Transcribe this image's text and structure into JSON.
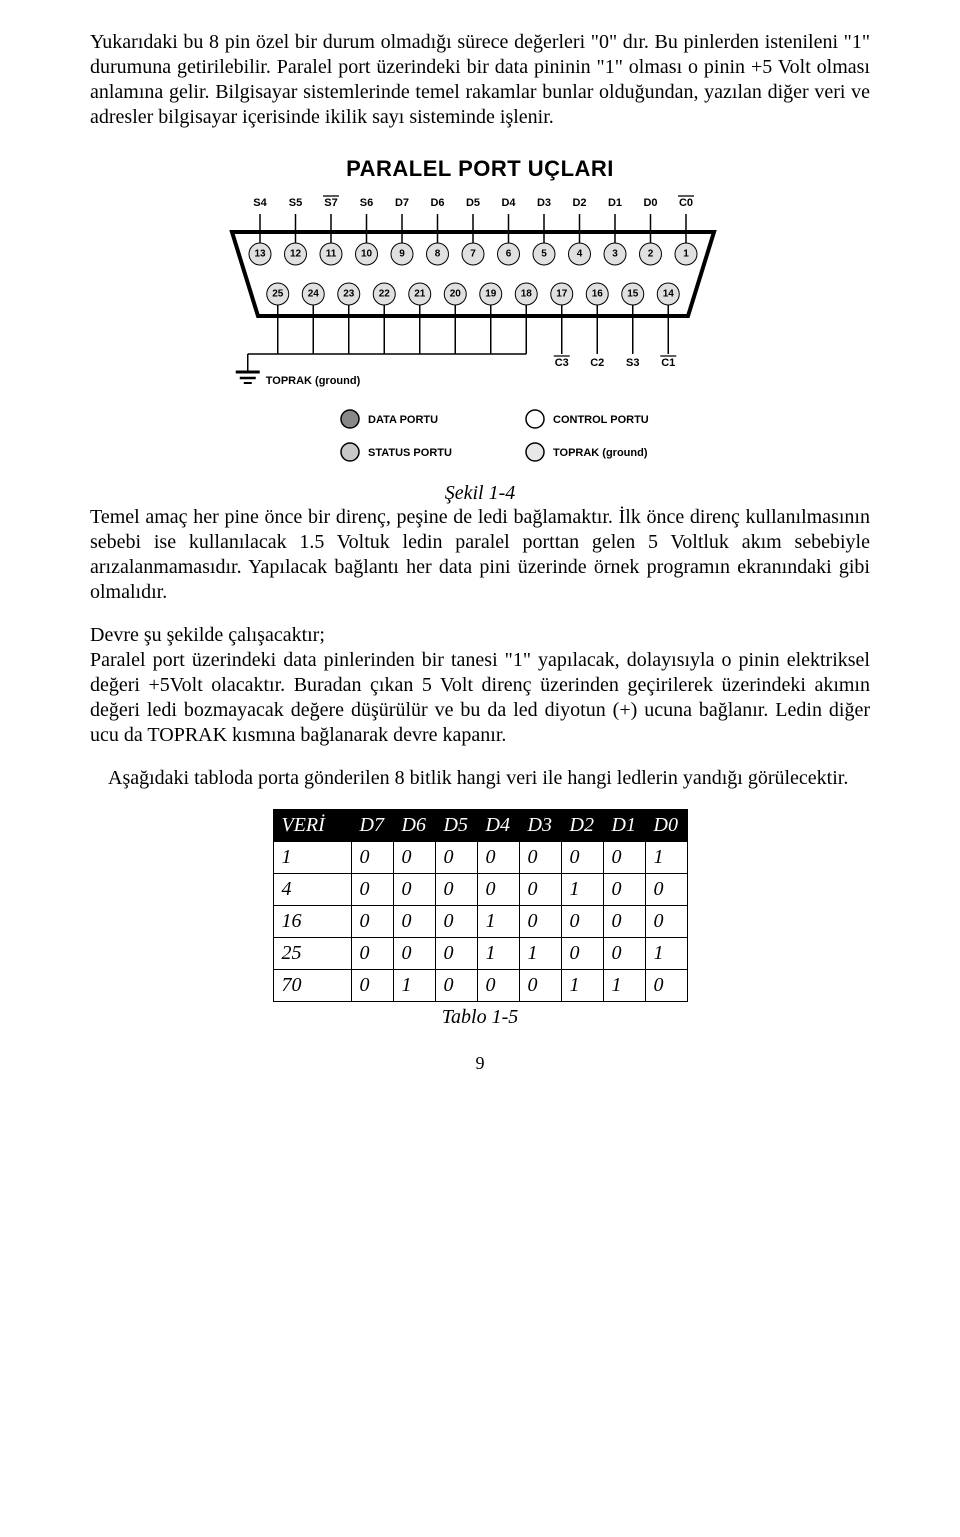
{
  "intro_para": "Yukarıdaki bu 8 pin özel bir durum olmadığı sürece değerleri \"0\" dır. Bu pinlerden istenileni \"1\" durumuna getirilebilir. Paralel port üzerindeki bir data pininin \"1\" olması o pinin +5 Volt olması anlamına gelir. Bilgisayar sistemlerinde temel rakamlar bunlar olduğundan, yazılan diğer veri ve adresler bilgisayar içerisinde ikilik sayı sisteminde işlenir.",
  "diagram": {
    "title": "PARALEL PORT UÇLARI",
    "top_labels": [
      "S4",
      "S5",
      "S7",
      "S6",
      "D7",
      "D6",
      "D5",
      "D4",
      "D3",
      "D2",
      "D1",
      "D0",
      "C0"
    ],
    "top_overline": [
      false,
      false,
      true,
      false,
      false,
      false,
      false,
      false,
      false,
      false,
      false,
      false,
      true
    ],
    "top_pins": [
      "13",
      "12",
      "11",
      "10",
      "9",
      "8",
      "7",
      "6",
      "5",
      "4",
      "3",
      "2",
      "1"
    ],
    "bottom_pins": [
      "25",
      "24",
      "23",
      "22",
      "21",
      "20",
      "19",
      "18",
      "17",
      "16",
      "15",
      "14"
    ],
    "bottom_labels": [
      "C3",
      "C2",
      "S3",
      "C1"
    ],
    "bottom_overline": [
      true,
      false,
      false,
      true
    ],
    "legend": {
      "left_top": "DATA PORTU",
      "right_top": "CONTROL PORTU",
      "left_bottom": "STATUS PORTU",
      "right_bottom": "TOPRAK (ground)"
    },
    "ground_label": "TOPRAK (ground)"
  },
  "fig_caption": "Şekil 1-4",
  "para_after_fig": "Temel amaç her pine önce bir direnç, peşine de ledi bağlamaktır. İlk önce direnç kullanılmasının sebebi ise kullanılacak 1.5 Voltuk ledin paralel porttan gelen 5 Voltluk akım sebebiyle arızalanmamasıdır. Yapılacak bağlantı her data pini üzerinde örnek programın ekranındaki gibi olmalıdır.",
  "circuit_heading": "Devre şu şekilde çalışacaktır;",
  "circuit_para": "Paralel port üzerindeki data pinlerinden bir tanesi \"1\" yapılacak, dolayısıyla o pinin elektriksel değeri +5Volt olacaktır. Buradan çıkan 5 Volt direnç üzerinden geçirilerek üzerindeki akımın değeri ledi bozmayacak değere düşürülür ve bu da led diyotun (+) ucuna bağlanır. Ledin diğer ucu da TOPRAK kısmına bağlanarak devre kapanır.",
  "table_intro": "Aşağıdaki tabloda porta gönderilen 8 bitlik hangi veri ile hangi ledlerin yandığı görülecektir.",
  "table": {
    "headers": [
      "VERİ",
      "D7",
      "D6",
      "D5",
      "D4",
      "D3",
      "D2",
      "D1",
      "D0"
    ],
    "rows": [
      [
        "1",
        "0",
        "0",
        "0",
        "0",
        "0",
        "0",
        "0",
        "1"
      ],
      [
        "4",
        "0",
        "0",
        "0",
        "0",
        "0",
        "1",
        "0",
        "0"
      ],
      [
        "16",
        "0",
        "0",
        "0",
        "1",
        "0",
        "0",
        "0",
        "0"
      ],
      [
        "25",
        "0",
        "0",
        "0",
        "1",
        "1",
        "0",
        "0",
        "1"
      ],
      [
        "70",
        "0",
        "1",
        "0",
        "0",
        "0",
        "1",
        "1",
        "0"
      ]
    ]
  },
  "table_caption": "Tablo 1-5",
  "page_number": "9",
  "colors": {
    "text": "#000000",
    "bg": "#ffffff",
    "pin_fill": "#e0e0e0",
    "th_bg": "#000000",
    "th_fg": "#ffffff"
  }
}
